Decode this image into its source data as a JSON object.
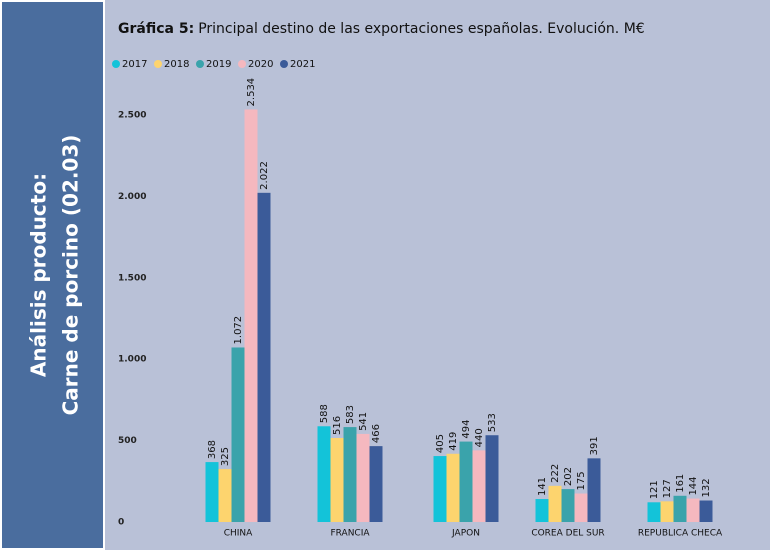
{
  "sidebar": {
    "lines": [
      "Análisis producto:",
      "Carne de porcino (02.03)"
    ]
  },
  "chart_data": {
    "type": "bar",
    "title_prefix": "Gráfica 5:",
    "title": "Principal destino de las exportaciones españolas. Evolución. M€",
    "categories": [
      "CHINA",
      "FRANCIA",
      "JAPON",
      "COREA DEL SUR",
      "REPUBLICA CHECA"
    ],
    "series": [
      {
        "name": "2017",
        "color": "#13c3d9",
        "values": [
          368,
          588,
          405,
          141,
          121
        ],
        "value_labels": [
          "368",
          "588",
          "405",
          "141",
          "121"
        ]
      },
      {
        "name": "2018",
        "color": "#fdd46e",
        "values": [
          325,
          516,
          419,
          222,
          127
        ],
        "value_labels": [
          "325",
          "516",
          "419",
          "222",
          "127"
        ]
      },
      {
        "name": "2019",
        "color": "#3aa3ab",
        "values": [
          1072,
          583,
          494,
          202,
          161
        ],
        "value_labels": [
          "1.072",
          "583",
          "494",
          "202",
          "161"
        ]
      },
      {
        "name": "2020",
        "color": "#f5b8bf",
        "values": [
          2534,
          541,
          440,
          175,
          144
        ],
        "value_labels": [
          "2.534",
          "541",
          "440",
          "175",
          "144"
        ]
      },
      {
        "name": "2021",
        "color": "#3b5b99",
        "values": [
          2022,
          466,
          533,
          391,
          132
        ],
        "value_labels": [
          "2.022",
          "466",
          "533",
          "391",
          "132"
        ]
      }
    ],
    "ylim": [
      0,
      2600
    ],
    "yticks": [
      0,
      500,
      {
        "value": 1000,
        "label": "1.000"
      },
      {
        "value": 1500,
        "label": "1.500"
      },
      {
        "value": 2000,
        "label": "2.000"
      },
      {
        "value": 2500,
        "label": "2.500"
      }
    ],
    "legend": "top-left"
  }
}
